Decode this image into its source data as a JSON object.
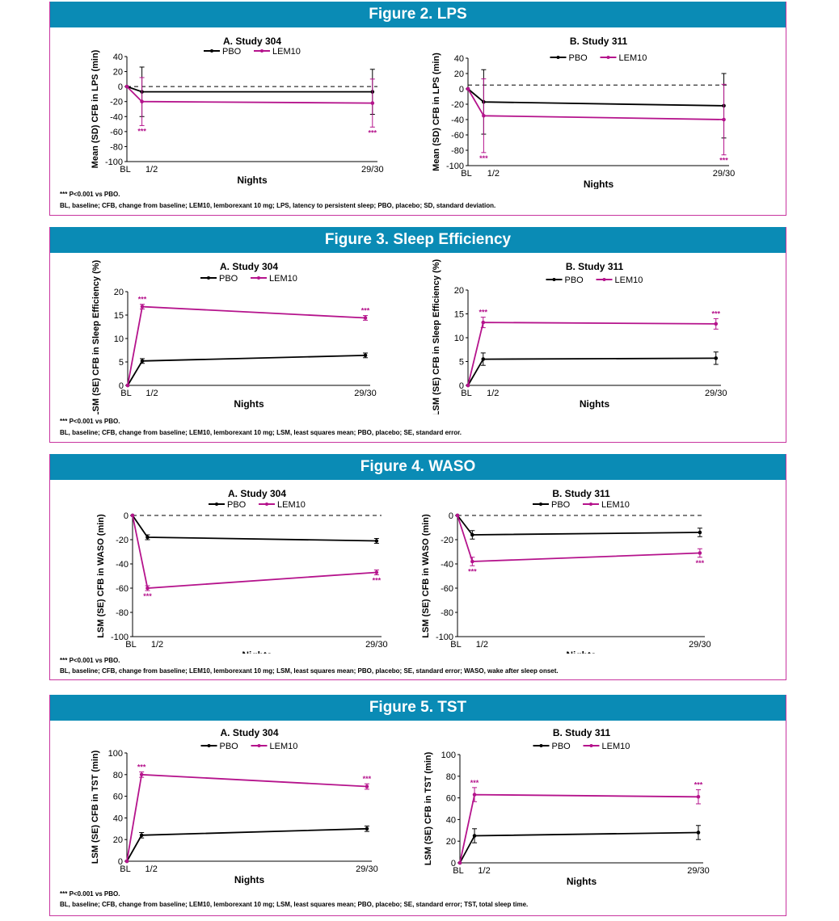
{
  "colors": {
    "header_bg": "#0a8bb5",
    "border": "#c8359f",
    "pbo": "#000000",
    "lem10": "#b5138c"
  },
  "figures": [
    {
      "id": "fig2",
      "title": "Figure 2. LPS",
      "footnote_sig": "*** P<0.001 vs PBO.",
      "footnote_abbr": "BL, baseline; CFB, change from baseline; LEM10, lemborexant 10 mg; LPS, latency to persistent sleep; PBO, placebo; SD, standard deviation."
    },
    {
      "id": "fig3",
      "title": "Figure 3. Sleep Efficiency",
      "footnote_sig": "*** P<0.001 vs PBO.",
      "footnote_abbr": "BL, baseline; CFB, change from baseline; LEM10, lemborexant 10 mg; LSM, least squares mean; PBO, placebo; SE, standard error."
    },
    {
      "id": "fig4",
      "title": "Figure 4. WASO",
      "footnote_sig": "*** P<0.001 vs PBO.",
      "footnote_abbr": "BL, baseline; CFB, change from baseline; LEM10, lemborexant 10 mg; LSM, least squares mean; PBO, placebo; SE, standard error; WASO, wake after sleep onset."
    },
    {
      "id": "fig5",
      "title": "Figure 5. TST",
      "footnote_sig": "*** P<0.001 vs PBO.",
      "footnote_abbr": "BL, baseline; CFB, change from baseline; LEM10, lemborexant 10 mg; LSM, least squares mean; PBO, placebo; SE, standard error; TST, total sleep time."
    }
  ],
  "chart_data": [
    {
      "figure": 0,
      "panel": "left",
      "type": "line",
      "title": "A. Study 304",
      "ylabel": "Mean (SD) CFB in LPS (min)",
      "xlabel": "Nights",
      "ylim": [
        -100,
        40
      ],
      "yticks": [
        40,
        20,
        0,
        -20,
        -40,
        -60,
        -80,
        -100
      ],
      "x": [
        0,
        1,
        29
      ],
      "xticklabels": [
        "BL",
        "1/2",
        "29/30"
      ],
      "ref_line": 0,
      "legend": [
        "PBO",
        "LEM10"
      ],
      "series": [
        {
          "name": "PBO",
          "values": [
            0,
            -7,
            -7
          ],
          "err": [
            0,
            33,
            30
          ]
        },
        {
          "name": "LEM10",
          "values": [
            0,
            -20,
            -22
          ],
          "err": [
            0,
            32,
            32
          ],
          "sig": [
            "",
            "***",
            "***"
          ]
        }
      ]
    },
    {
      "figure": 0,
      "panel": "right",
      "type": "line",
      "title": "B. Study 311",
      "ylabel": "Mean (SD) CFB in LPS (min)",
      "xlabel": "Nights",
      "ylim": [
        -100,
        40
      ],
      "yticks": [
        40,
        20,
        0,
        -20,
        -40,
        -60,
        -80,
        -100
      ],
      "x": [
        0,
        1,
        29
      ],
      "xticklabels": [
        "BL",
        "1/2",
        "29/30"
      ],
      "ref_line": 5,
      "legend": [
        "PBO",
        "LEM10"
      ],
      "series": [
        {
          "name": "PBO",
          "values": [
            0,
            -17,
            -22
          ],
          "err": [
            0,
            42,
            42
          ]
        },
        {
          "name": "LEM10",
          "values": [
            0,
            -35,
            -40
          ],
          "err": [
            0,
            48,
            46
          ],
          "sig": [
            "",
            "***",
            "***"
          ]
        }
      ]
    },
    {
      "figure": 1,
      "panel": "left",
      "type": "line",
      "title": "A. Study 304",
      "ylabel": "LSM (SE) CFB in Sleep Efficiency (%)",
      "xlabel": "Nights",
      "ylim": [
        0,
        20
      ],
      "yticks": [
        20,
        15,
        10,
        5,
        0
      ],
      "x": [
        0,
        1,
        29
      ],
      "xticklabels": [
        "BL",
        "1/2",
        "29/30"
      ],
      "legend": [
        "PBO",
        "LEM10"
      ],
      "series": [
        {
          "name": "PBO",
          "values": [
            0,
            5.2,
            6.4
          ],
          "err": [
            0,
            0.5,
            0.5
          ]
        },
        {
          "name": "LEM10",
          "values": [
            0,
            16.8,
            14.4
          ],
          "err": [
            0,
            0.5,
            0.5
          ],
          "sig": [
            "",
            "***",
            "***"
          ]
        }
      ]
    },
    {
      "figure": 1,
      "panel": "right",
      "type": "line",
      "title": "B. Study 311",
      "ylabel": "LSM (SE) CFB in Sleep Efficiency (%)",
      "xlabel": "Nights",
      "ylim": [
        0,
        20
      ],
      "yticks": [
        20,
        15,
        10,
        5,
        0
      ],
      "x": [
        0,
        1,
        29
      ],
      "xticklabels": [
        "BL",
        "1/2",
        "29/30"
      ],
      "legend": [
        "PBO",
        "LEM10"
      ],
      "series": [
        {
          "name": "PBO",
          "values": [
            0,
            5.5,
            5.7
          ],
          "err": [
            0,
            1.3,
            1.3
          ]
        },
        {
          "name": "LEM10",
          "values": [
            0,
            13.2,
            12.9
          ],
          "err": [
            0,
            1.1,
            1.1
          ],
          "sig": [
            "",
            "***",
            "***"
          ]
        }
      ]
    },
    {
      "figure": 2,
      "panel": "left",
      "type": "line",
      "title": "A. Study 304",
      "ylabel": "LSM (SE) CFB in WASO (min)",
      "xlabel": "Nights",
      "ylim": [
        -100,
        0
      ],
      "yticks": [
        0,
        -20,
        -40,
        -60,
        -80,
        -100
      ],
      "x": [
        0,
        1,
        29
      ],
      "xticklabels": [
        "BL",
        "1/2",
        "29/30"
      ],
      "ref_line": 0,
      "legend": [
        "PBO",
        "LEM10"
      ],
      "series": [
        {
          "name": "PBO",
          "values": [
            0,
            -18,
            -21
          ],
          "err": [
            0,
            2,
            2
          ]
        },
        {
          "name": "LEM10",
          "values": [
            0,
            -60,
            -47
          ],
          "err": [
            0,
            2,
            2
          ],
          "sig": [
            "",
            "***",
            "***"
          ],
          "sig_below": true
        }
      ]
    },
    {
      "figure": 2,
      "panel": "right",
      "type": "line",
      "title": "B. Study 311",
      "ylabel": "LSM (SE) CFB in WASO (min)",
      "xlabel": "Nights",
      "ylim": [
        -100,
        0
      ],
      "yticks": [
        0,
        -20,
        -40,
        -60,
        -80,
        -100
      ],
      "x": [
        0,
        1,
        29
      ],
      "xticklabels": [
        "BL",
        "1/2",
        "29/30"
      ],
      "ref_line": 0,
      "legend": [
        "PBO",
        "LEM10"
      ],
      "series": [
        {
          "name": "PBO",
          "values": [
            0,
            -16,
            -14
          ],
          "err": [
            0,
            3.5,
            3.5
          ]
        },
        {
          "name": "LEM10",
          "values": [
            0,
            -38,
            -31
          ],
          "err": [
            0,
            3.5,
            3.5
          ],
          "sig": [
            "",
            "***",
            "***"
          ],
          "sig_below": true
        }
      ]
    },
    {
      "figure": 3,
      "panel": "left",
      "type": "line",
      "title": "A. Study 304",
      "ylabel": "LSM (SE) CFB in TST (min)",
      "xlabel": "Nights",
      "ylim": [
        0,
        100
      ],
      "yticks": [
        100,
        80,
        60,
        40,
        20,
        0
      ],
      "x": [
        0,
        1,
        29
      ],
      "xticklabels": [
        "BL",
        "1/2",
        "29/30"
      ],
      "legend": [
        "PBO",
        "LEM10"
      ],
      "series": [
        {
          "name": "PBO",
          "values": [
            0,
            24,
            30
          ],
          "err": [
            0,
            2.5,
            2.5
          ]
        },
        {
          "name": "LEM10",
          "values": [
            0,
            80,
            69
          ],
          "err": [
            0,
            2.5,
            2.5
          ],
          "sig": [
            "",
            "***",
            "***"
          ]
        }
      ]
    },
    {
      "figure": 3,
      "panel": "right",
      "type": "line",
      "title": "B. Study 311",
      "ylabel": "LSM (SE) CFB in TST (min)",
      "xlabel": "Nights",
      "ylim": [
        0,
        100
      ],
      "yticks": [
        100,
        80,
        60,
        40,
        20,
        0
      ],
      "x": [
        0,
        1,
        29
      ],
      "xticklabels": [
        "BL",
        "1/2",
        "29/30"
      ],
      "legend": [
        "PBO",
        "LEM10"
      ],
      "series": [
        {
          "name": "PBO",
          "values": [
            0,
            25,
            28
          ],
          "err": [
            0,
            6.5,
            6.5
          ]
        },
        {
          "name": "LEM10",
          "values": [
            0,
            63,
            61
          ],
          "err": [
            0,
            6.5,
            6.5
          ],
          "sig": [
            "",
            "***",
            "***"
          ]
        }
      ]
    }
  ]
}
